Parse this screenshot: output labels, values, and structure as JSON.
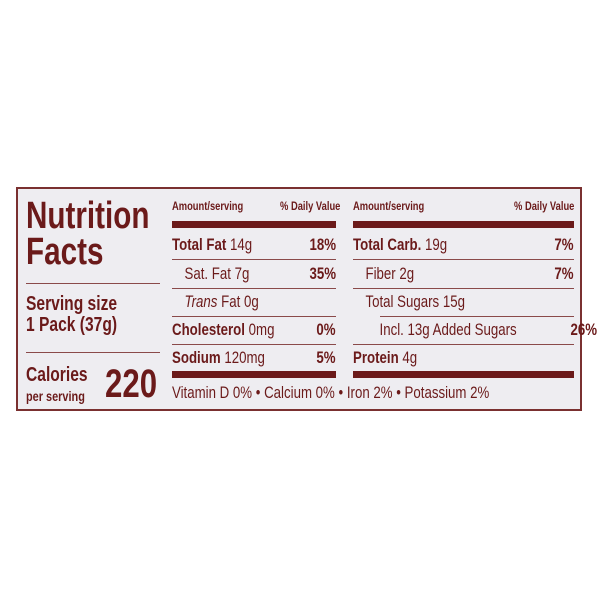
{
  "title_line1": "Nutrition",
  "title_line2": "Facts",
  "serving_label": "Serving size",
  "serving_value": "1 Pack (37g)",
  "calories_label": "Calories",
  "calories_sub": "per serving",
  "calories_value": "220",
  "header": {
    "amount": "Amount/serving",
    "dv": "% Daily Value"
  },
  "left_rows": [
    {
      "name": "Total Fat",
      "amount": "14g",
      "dv": "18%"
    },
    {
      "name": "Sat. Fat",
      "amount": "7g",
      "dv": "35%"
    },
    {
      "name": "Trans",
      "name2": "Fat",
      "amount": "0g",
      "dv": ""
    },
    {
      "name": "Cholesterol",
      "amount": "0mg",
      "dv": "0%"
    },
    {
      "name": "Sodium",
      "amount": "120mg",
      "dv": "5%"
    }
  ],
  "right_rows": [
    {
      "name": "Total Carb.",
      "amount": "19g",
      "dv": "7%"
    },
    {
      "name": "Fiber",
      "amount": "2g",
      "dv": "7%"
    },
    {
      "name": "Total Sugars",
      "amount": "15g",
      "dv": ""
    },
    {
      "name": "Incl. 13g Added Sugars",
      "amount": "",
      "dv": "26%"
    },
    {
      "name": "Protein",
      "amount": "4g",
      "dv": ""
    }
  ],
  "footer": "Vitamin D 0% • Calcium 0% • Iron 2% • Potassium 2%",
  "colors": {
    "text": "#6b1a1a",
    "background": "#eeedf1"
  }
}
